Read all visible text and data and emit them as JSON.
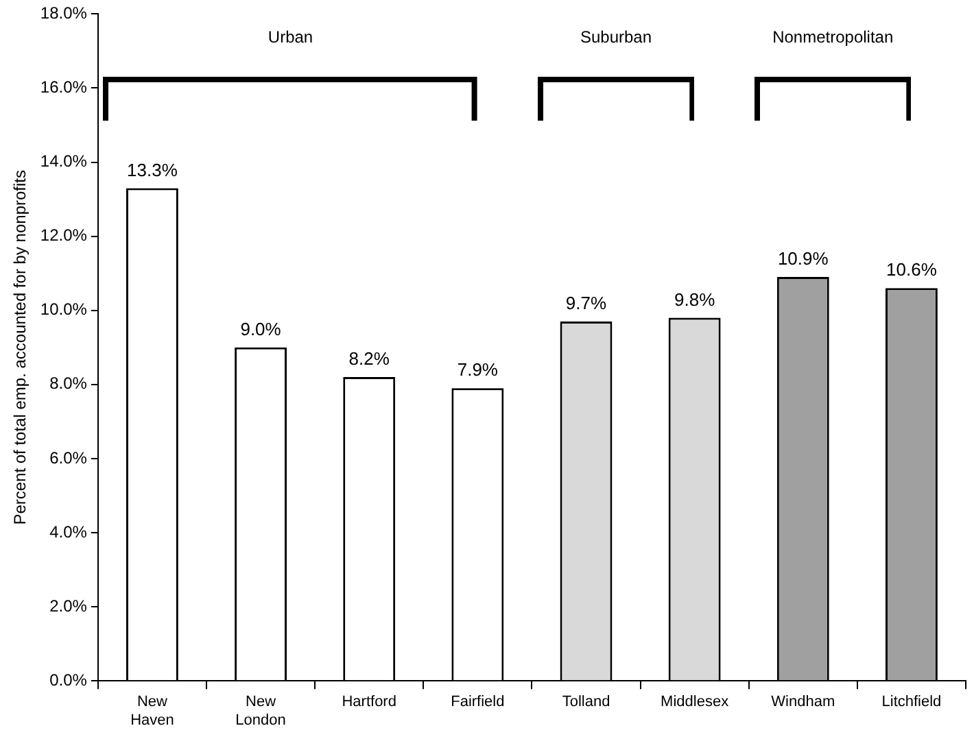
{
  "chart_data": {
    "type": "bar",
    "ylabel": "Percent of total emp. accounted for by nonprofits",
    "categories": [
      "New Haven",
      "New London",
      "Hartford",
      "Fairfield",
      "Tolland",
      "Middlesex",
      "Windham",
      "Litchfield"
    ],
    "values": [
      13.3,
      9.0,
      8.2,
      7.9,
      9.7,
      9.8,
      10.9,
      10.6
    ],
    "colors": [
      "#ffffff",
      "#ffffff",
      "#ffffff",
      "#ffffff",
      "#d9d9d9",
      "#d9d9d9",
      "#a0a0a0",
      "#a0a0a0"
    ],
    "value_labels": [
      "13.3%",
      "9.0%",
      "8.2%",
      "7.9%",
      "9.7%",
      "9.8%",
      "10.9%",
      "10.6%"
    ],
    "ylim": [
      0,
      18
    ],
    "yticks": [
      {
        "value": 0,
        "label": "0.0%"
      },
      {
        "value": 2,
        "label": "2.0%"
      },
      {
        "value": 4,
        "label": "4.0%"
      },
      {
        "value": 6,
        "label": "6.0%"
      },
      {
        "value": 8,
        "label": "8.0%"
      },
      {
        "value": 10,
        "label": "10.0%"
      },
      {
        "value": 12,
        "label": "12.0%"
      },
      {
        "value": 14,
        "label": "14.0%"
      },
      {
        "value": 16,
        "label": "16.0%"
      },
      {
        "value": 18,
        "label": "18.0%"
      }
    ],
    "annotations": [
      "Urban",
      "Suburban",
      "Nonmetropolitan"
    ],
    "grid": false,
    "legend": false
  }
}
